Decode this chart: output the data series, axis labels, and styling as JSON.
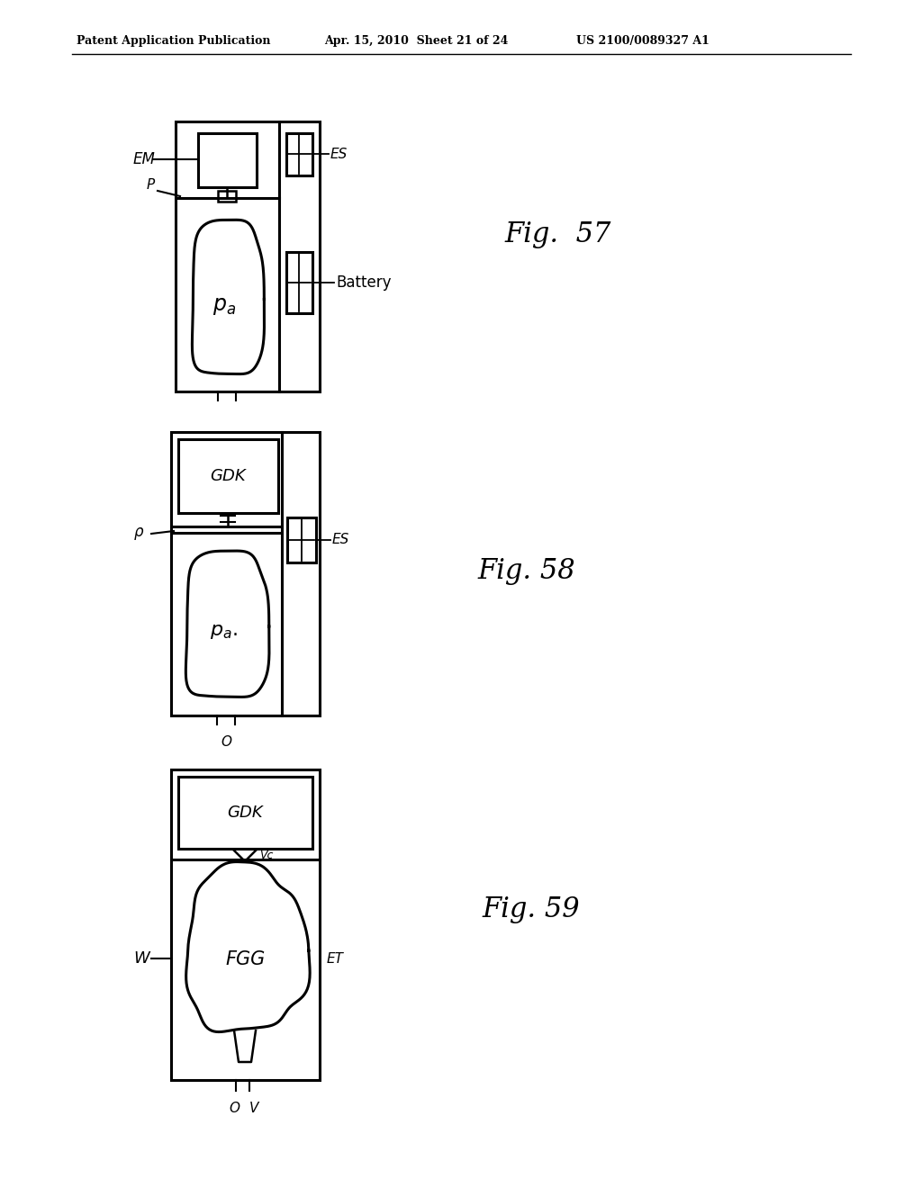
{
  "background_color": "#ffffff",
  "header_left": "Patent Application Publication",
  "header_mid": "Apr. 15, 2010  Sheet 21 of 24",
  "header_right": "US 2100/0089327 A1",
  "fig57_label": "Fig.  57",
  "fig58_label": "Fig. 58",
  "fig59_label": "Fig. 59"
}
